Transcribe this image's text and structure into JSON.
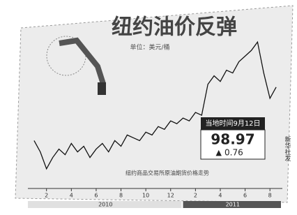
{
  "chart_data": {
    "type": "line",
    "title": "纽约油价反弹",
    "subtitle": "单位：美元/桶",
    "x": [
      1,
      1.5,
      2,
      2.5,
      3,
      3.5,
      4,
      4.5,
      5,
      5.5,
      6,
      6.5,
      7,
      7.5,
      8,
      8.5,
      9,
      9.5,
      10,
      10.5,
      11,
      11.5,
      12,
      12.5,
      13,
      13.5,
      14,
      14.5,
      15,
      15.5,
      16,
      16.5,
      17,
      17.5,
      18,
      18.5,
      19,
      19.5,
      20,
      20.5
    ],
    "values": [
      80,
      76,
      70,
      74,
      77,
      75,
      79,
      76,
      78,
      74,
      77,
      79,
      76,
      80,
      78,
      82,
      81,
      80,
      83,
      82,
      85,
      84,
      87,
      86,
      88,
      87,
      90,
      89,
      100,
      103,
      101,
      105,
      104,
      108,
      110,
      112,
      115,
      104,
      95,
      99
    ],
    "color": "#111111",
    "xlim": [
      0.5,
      21
    ],
    "ylim": [
      65,
      120
    ],
    "xticks": [
      2,
      4,
      6,
      8,
      10,
      12,
      {
        "value": 14,
        "label": "2"
      },
      {
        "value": 16,
        "label": "4"
      },
      {
        "value": 18,
        "label": "6"
      },
      {
        "value": 20,
        "label": "8"
      }
    ],
    "x_groups": [
      "2010",
      "2011"
    ],
    "callout": {
      "date": "当地时间9月12日",
      "price": 98.97,
      "change": 0.76
    },
    "note": "纽约商品交易所原油期货价格走势",
    "source": "新华社发"
  }
}
